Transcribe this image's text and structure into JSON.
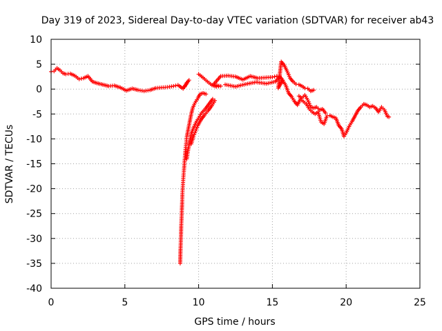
{
  "chart_data": {
    "type": "scatter",
    "title": "Day 319 of 2023, Sidereal Day-to-day VTEC variation (SDTVAR) for receiver ab43",
    "xlabel": "GPS time / hours",
    "ylabel": "SDTVAR / TECUs",
    "xlim": [
      0,
      25
    ],
    "ylim": [
      -40,
      10
    ],
    "x_ticks": [
      0,
      5,
      10,
      15,
      20,
      25
    ],
    "y_ticks": [
      10,
      5,
      0,
      -5,
      -10,
      -15,
      -20,
      -25,
      -30,
      -35,
      -40
    ],
    "grid": true,
    "marker": "+",
    "series": [
      {
        "name": "SDTVAR",
        "color": "#ff0000",
        "points": [
          [
            0.0,
            3.5
          ],
          [
            0.2,
            3.6
          ],
          [
            0.4,
            4.2
          ],
          [
            0.6,
            3.8
          ],
          [
            0.8,
            3.2
          ],
          [
            1.0,
            3.0
          ],
          [
            1.3,
            3.1
          ],
          [
            1.6,
            2.7
          ],
          [
            1.9,
            2.0
          ],
          [
            2.2,
            2.2
          ],
          [
            2.5,
            2.6
          ],
          [
            2.8,
            1.5
          ],
          [
            3.1,
            1.2
          ],
          [
            3.5,
            0.9
          ],
          [
            3.9,
            0.6
          ],
          [
            4.3,
            0.7
          ],
          [
            4.7,
            0.3
          ],
          [
            5.1,
            -0.3
          ],
          [
            5.5,
            0.1
          ],
          [
            5.9,
            -0.2
          ],
          [
            6.3,
            -0.4
          ],
          [
            6.7,
            -0.2
          ],
          [
            7.1,
            0.2
          ],
          [
            7.5,
            0.3
          ],
          [
            7.9,
            0.4
          ],
          [
            8.3,
            0.6
          ],
          [
            8.6,
            0.8
          ],
          [
            8.95,
            0.1
          ],
          [
            9.35,
            1.8
          ],
          [
            9.2,
            1.3
          ],
          [
            9.05,
            0.5
          ],
          [
            8.75,
            -35.0
          ],
          [
            8.77,
            -32.5
          ],
          [
            8.8,
            -30.0
          ],
          [
            8.82,
            -27.5
          ],
          [
            8.85,
            -25.5
          ],
          [
            8.88,
            -23.0
          ],
          [
            8.9,
            -21.0
          ],
          [
            8.93,
            -19.5
          ],
          [
            8.96,
            -18.0
          ],
          [
            9.0,
            -16.5
          ],
          [
            9.05,
            -14.5
          ],
          [
            9.1,
            -12.5
          ],
          [
            9.15,
            -11.0
          ],
          [
            9.2,
            -9.5
          ],
          [
            9.3,
            -8.0
          ],
          [
            9.4,
            -6.5
          ],
          [
            9.5,
            -5.0
          ],
          [
            9.6,
            -3.8
          ],
          [
            9.75,
            -2.8
          ],
          [
            9.95,
            -1.8
          ],
          [
            10.1,
            -1.0
          ],
          [
            10.3,
            -0.8
          ],
          [
            10.5,
            -1.0
          ],
          [
            9.2,
            -14.0
          ],
          [
            9.3,
            -12.0
          ],
          [
            9.4,
            -10.5
          ],
          [
            9.5,
            -9.0
          ],
          [
            9.65,
            -7.8
          ],
          [
            9.8,
            -6.8
          ],
          [
            10.0,
            -5.8
          ],
          [
            10.2,
            -4.8
          ],
          [
            10.45,
            -4.0
          ],
          [
            10.7,
            -3.0
          ],
          [
            10.95,
            -2.0
          ],
          [
            9.5,
            -11.0
          ],
          [
            9.65,
            -9.5
          ],
          [
            9.8,
            -8.4
          ],
          [
            9.95,
            -7.3
          ],
          [
            10.15,
            -6.2
          ],
          [
            10.4,
            -5.2
          ],
          [
            10.65,
            -4.3
          ],
          [
            10.9,
            -3.3
          ],
          [
            11.1,
            -2.3
          ],
          [
            10.0,
            3.0
          ],
          [
            10.3,
            2.3
          ],
          [
            10.6,
            1.5
          ],
          [
            10.9,
            0.8
          ],
          [
            11.2,
            0.5
          ],
          [
            11.5,
            0.6
          ],
          [
            11.0,
            0.9
          ],
          [
            11.5,
            2.6
          ],
          [
            12.0,
            2.7
          ],
          [
            12.5,
            2.5
          ],
          [
            13.0,
            1.9
          ],
          [
            13.5,
            2.6
          ],
          [
            14.0,
            2.2
          ],
          [
            14.5,
            2.3
          ],
          [
            15.0,
            2.4
          ],
          [
            15.3,
            2.6
          ],
          [
            11.8,
            0.9
          ],
          [
            12.5,
            0.5
          ],
          [
            13.2,
            1.0
          ],
          [
            13.9,
            1.4
          ],
          [
            14.6,
            1.1
          ],
          [
            15.2,
            1.5
          ],
          [
            15.5,
            2.5
          ],
          [
            15.7,
            1.8
          ],
          [
            15.4,
            0.2
          ],
          [
            15.6,
            5.5
          ],
          [
            15.8,
            4.8
          ],
          [
            16.0,
            3.6
          ],
          [
            16.2,
            2.2
          ],
          [
            16.4,
            1.5
          ],
          [
            16.6,
            1.0
          ],
          [
            16.8,
            0.9
          ],
          [
            17.0,
            0.6
          ],
          [
            17.2,
            0.2
          ],
          [
            17.4,
            0.1
          ],
          [
            17.6,
            -0.4
          ],
          [
            17.8,
            -0.2
          ],
          [
            15.7,
            1.7
          ],
          [
            15.9,
            0.8
          ],
          [
            16.1,
            -0.8
          ],
          [
            16.3,
            -1.5
          ],
          [
            16.5,
            -2.5
          ],
          [
            16.7,
            -3.2
          ],
          [
            16.9,
            -2.0
          ],
          [
            17.1,
            -2.5
          ],
          [
            17.3,
            -3.0
          ],
          [
            17.5,
            -4.0
          ],
          [
            17.7,
            -4.6
          ],
          [
            17.9,
            -5.0
          ],
          [
            18.1,
            -4.6
          ],
          [
            18.3,
            -6.6
          ],
          [
            18.5,
            -7.0
          ],
          [
            18.7,
            -5.4
          ],
          [
            18.9,
            -5.3
          ],
          [
            19.1,
            -5.6
          ],
          [
            19.3,
            -5.8
          ],
          [
            19.5,
            -7.3
          ],
          [
            19.7,
            -8.0
          ],
          [
            19.85,
            -9.5
          ],
          [
            20.0,
            -8.8
          ],
          [
            20.2,
            -7.5
          ],
          [
            20.4,
            -6.5
          ],
          [
            20.6,
            -5.4
          ],
          [
            20.8,
            -4.3
          ],
          [
            21.0,
            -3.6
          ],
          [
            21.2,
            -3.0
          ],
          [
            21.4,
            -3.2
          ],
          [
            21.6,
            -3.6
          ],
          [
            21.8,
            -3.4
          ],
          [
            22.0,
            -3.8
          ],
          [
            22.2,
            -4.6
          ],
          [
            22.4,
            -3.6
          ],
          [
            22.6,
            -4.2
          ],
          [
            22.8,
            -5.5
          ],
          [
            22.9,
            -5.6
          ],
          [
            16.8,
            -1.4
          ],
          [
            17.0,
            -1.8
          ],
          [
            17.2,
            -1.2
          ],
          [
            17.4,
            -2.2
          ],
          [
            17.6,
            -3.6
          ],
          [
            17.8,
            -3.8
          ],
          [
            18.0,
            -3.6
          ],
          [
            18.2,
            -4.2
          ],
          [
            18.4,
            -4.0
          ],
          [
            18.6,
            -4.8
          ]
        ]
      }
    ]
  }
}
